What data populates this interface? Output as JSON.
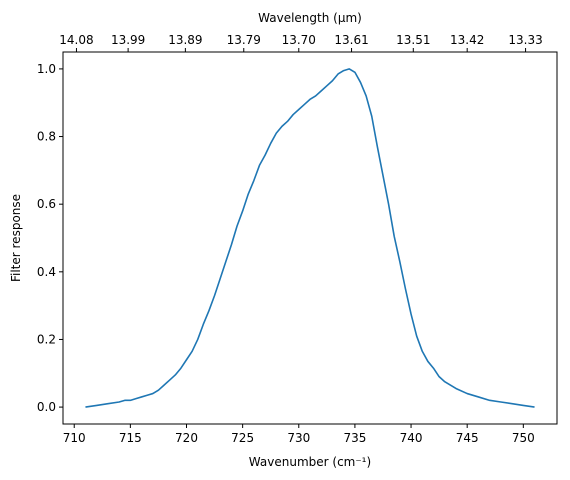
{
  "chart_data": {
    "type": "line",
    "xlabel": "Wavenumber (cm⁻¹)",
    "ylabel": "Filter response",
    "top_xlabel": "Wavelength (μm)",
    "xlim": [
      709,
      753
    ],
    "ylim": [
      -0.05,
      1.05
    ],
    "x_ticks": [
      710,
      715,
      720,
      725,
      730,
      735,
      740,
      745,
      750
    ],
    "y_ticks": [
      0.0,
      0.2,
      0.4,
      0.6,
      0.8,
      1.0
    ],
    "y_tick_labels": [
      "0.0",
      "0.2",
      "0.4",
      "0.6",
      "0.8",
      "1.0"
    ],
    "top_ticks": [
      {
        "value": 710.2,
        "label": "14.08"
      },
      {
        "value": 714.8,
        "label": "13.99"
      },
      {
        "value": 719.9,
        "label": "13.89"
      },
      {
        "value": 725.1,
        "label": "13.79"
      },
      {
        "value": 730.0,
        "label": "13.70"
      },
      {
        "value": 734.7,
        "label": "13.61"
      },
      {
        "value": 740.2,
        "label": "13.51"
      },
      {
        "value": 745.0,
        "label": "13.42"
      },
      {
        "value": 750.2,
        "label": "13.33"
      }
    ],
    "grid": false,
    "series": [
      {
        "color": "#1f77b4",
        "x": [
          711,
          712,
          713,
          714,
          714.5,
          715,
          715.5,
          716,
          716.5,
          717,
          717.5,
          718,
          718.5,
          719,
          719.5,
          720,
          720.5,
          721,
          721.5,
          722,
          722.5,
          723,
          723.5,
          724,
          724.5,
          725,
          725.5,
          726,
          726.5,
          727,
          727.5,
          728,
          728.5,
          729,
          729.5,
          730,
          730.5,
          731,
          731.5,
          732,
          732.5,
          733,
          733.5,
          734,
          734.5,
          735,
          735.5,
          736,
          736.5,
          737,
          737.5,
          738,
          738.5,
          739,
          739.5,
          740,
          740.5,
          741,
          741.5,
          742,
          742.5,
          743,
          743.5,
          744,
          745,
          746,
          747,
          748,
          749,
          750,
          751
        ],
        "y": [
          0.0,
          0.005,
          0.01,
          0.015,
          0.02,
          0.02,
          0.025,
          0.03,
          0.035,
          0.04,
          0.05,
          0.065,
          0.08,
          0.095,
          0.115,
          0.14,
          0.165,
          0.2,
          0.245,
          0.285,
          0.33,
          0.38,
          0.43,
          0.48,
          0.535,
          0.58,
          0.63,
          0.67,
          0.715,
          0.745,
          0.78,
          0.81,
          0.83,
          0.845,
          0.865,
          0.88,
          0.895,
          0.91,
          0.92,
          0.935,
          0.95,
          0.965,
          0.985,
          0.995,
          1.0,
          0.99,
          0.96,
          0.92,
          0.86,
          0.77,
          0.685,
          0.6,
          0.505,
          0.43,
          0.35,
          0.275,
          0.21,
          0.165,
          0.135,
          0.115,
          0.09,
          0.075,
          0.065,
          0.055,
          0.04,
          0.03,
          0.02,
          0.015,
          0.01,
          0.005,
          0.0
        ]
      }
    ]
  }
}
